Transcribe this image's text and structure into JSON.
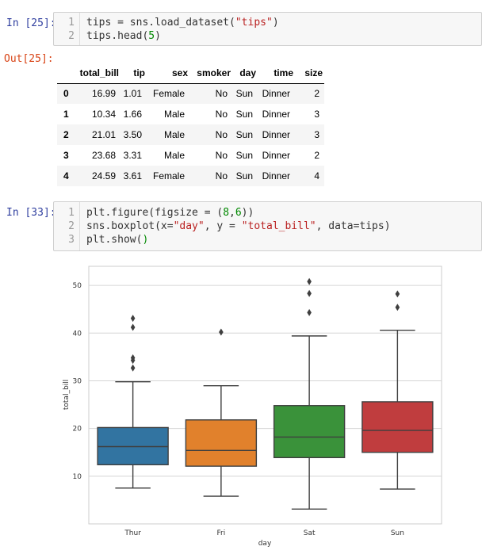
{
  "cells": [
    {
      "prompt": "In [25]:",
      "lines": [
        [
          [
            "plain",
            "tips = sns.load_dataset("
          ],
          [
            "str",
            "\"tips\""
          ],
          [
            "plain",
            ")"
          ]
        ],
        [
          [
            "plain",
            "tips.head("
          ],
          [
            "num",
            "5"
          ],
          [
            "plain",
            ")"
          ]
        ]
      ]
    },
    {
      "prompt": "In [33]:",
      "lines": [
        [
          [
            "plain",
            "plt.figure(figsize = ("
          ],
          [
            "num",
            "8"
          ],
          [
            "plain",
            ","
          ],
          [
            "num",
            "6"
          ],
          [
            "plain",
            "))"
          ]
        ],
        [
          [
            "plain",
            "sns.boxplot(x="
          ],
          [
            "str",
            "\"day\""
          ],
          [
            "plain",
            ", y = "
          ],
          [
            "str",
            "\"total_bill\""
          ],
          [
            "plain",
            ", data=tips)"
          ]
        ],
        [
          [
            "plain",
            "plt.show("
          ],
          [
            "num",
            ")"
          ]
        ]
      ]
    }
  ],
  "output_prompt": "Out[25]:",
  "dataframe": {
    "columns": [
      "",
      "total_bill",
      "tip",
      "sex",
      "smoker",
      "day",
      "time",
      "size"
    ],
    "rows": [
      [
        "0",
        "16.99",
        "1.01",
        "Female",
        "No",
        "Sun",
        "Dinner",
        "2"
      ],
      [
        "1",
        "10.34",
        "1.66",
        "Male",
        "No",
        "Sun",
        "Dinner",
        "3"
      ],
      [
        "2",
        "21.01",
        "3.50",
        "Male",
        "No",
        "Sun",
        "Dinner",
        "3"
      ],
      [
        "3",
        "23.68",
        "3.31",
        "Male",
        "No",
        "Sun",
        "Dinner",
        "2"
      ],
      [
        "4",
        "24.59",
        "3.61",
        "Female",
        "No",
        "Sun",
        "Dinner",
        "4"
      ]
    ]
  },
  "chart_data": {
    "type": "box",
    "xlabel": "day",
    "ylabel": "total_bill",
    "ylim": [
      0,
      54
    ],
    "yticks": [
      10,
      20,
      30,
      40,
      50
    ],
    "grid": true,
    "categories": [
      "Thur",
      "Fri",
      "Sat",
      "Sun"
    ],
    "colors": [
      "#3274a1",
      "#e1812c",
      "#3a923a",
      "#c03d3e"
    ],
    "boxes": [
      {
        "category": "Thur",
        "whislo": 7.5,
        "q1": 12.4,
        "med": 16.2,
        "q3": 20.2,
        "whishi": 29.8,
        "fliers": [
          32.7,
          34.3,
          34.8,
          41.2,
          43.1
        ]
      },
      {
        "category": "Fri",
        "whislo": 5.8,
        "q1": 12.1,
        "med": 15.4,
        "q3": 21.8,
        "whishi": 28.97,
        "fliers": [
          40.2
        ]
      },
      {
        "category": "Sat",
        "whislo": 3.1,
        "q1": 13.9,
        "med": 18.2,
        "q3": 24.8,
        "whishi": 39.4,
        "fliers": [
          44.3,
          48.3,
          50.8
        ]
      },
      {
        "category": "Sun",
        "whislo": 7.3,
        "q1": 15.0,
        "med": 19.6,
        "q3": 25.6,
        "whishi": 40.6,
        "fliers": [
          45.4,
          48.2
        ]
      }
    ]
  }
}
